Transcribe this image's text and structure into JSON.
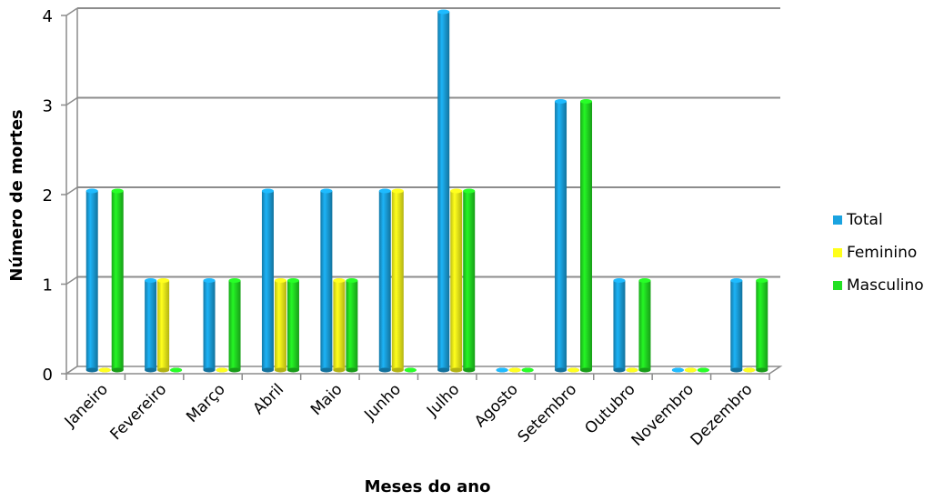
{
  "chart_data": {
    "type": "bar",
    "title": "",
    "xlabel": "Meses do ano",
    "ylabel": "Número de mortes",
    "ylim": [
      0,
      4
    ],
    "yticks": [
      "0",
      "1",
      "2",
      "3",
      "4"
    ],
    "grid": true,
    "legend_position": "right",
    "categories": [
      "Janeiro",
      "Fevereiro",
      "Março",
      "Abril",
      "Maio",
      "Junho",
      "Julho",
      "Agosto",
      "Setembro",
      "Outubro",
      "Novembro",
      "Dezembro"
    ],
    "series": [
      {
        "name": "Total",
        "color": "#1aa3e0",
        "values": [
          2,
          1,
          1,
          2,
          2,
          2,
          4,
          0,
          3,
          1,
          0,
          1
        ]
      },
      {
        "name": "Feminino",
        "color": "#ffff1a",
        "values": [
          0,
          1,
          0,
          1,
          1,
          2,
          2,
          0,
          0,
          0,
          0,
          0
        ]
      },
      {
        "name": "Masculino",
        "color": "#22e022",
        "values": [
          2,
          0,
          1,
          1,
          1,
          0,
          2,
          0,
          3,
          1,
          0,
          1
        ]
      }
    ]
  }
}
